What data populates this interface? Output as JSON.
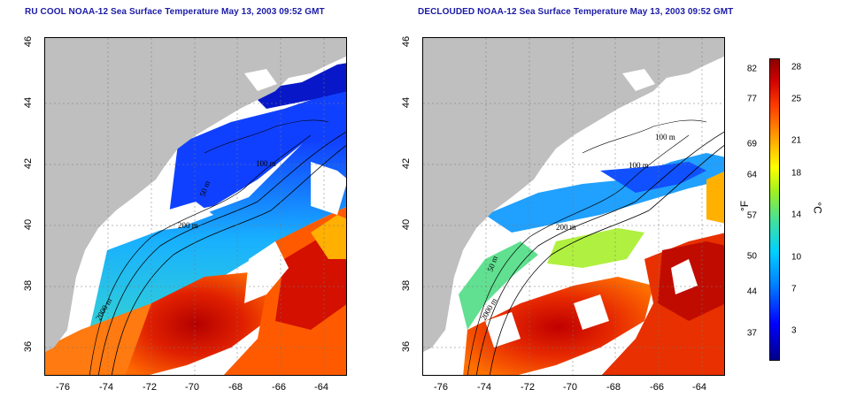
{
  "titles": {
    "left": "RU COOL NOAA-12 Sea Surface Temperature May 13, 2003 09:52 GMT",
    "right": "DECLOUDED NOAA-12 Sea Surface Temperature May 13, 2003 09:52 GMT"
  },
  "axes": {
    "x_ticks": [
      "-76",
      "-74",
      "-72",
      "-70",
      "-68",
      "-66",
      "-64"
    ],
    "y_ticks": [
      "36",
      "38",
      "40",
      "42",
      "44",
      "46"
    ]
  },
  "contour_labels": {
    "left": [
      "100 m",
      "200 m",
      "2000 m",
      "50 m"
    ],
    "right": [
      "100 m",
      "100 m",
      "200 m",
      "2000 m",
      "50 m"
    ]
  },
  "colorbar": {
    "fahrenheit_ticks": [
      "82",
      "77",
      "69",
      "64",
      "57",
      "50",
      "44",
      "37"
    ],
    "celsius_ticks": [
      "28",
      "25",
      "21",
      "18",
      "14",
      "10",
      "7",
      "3"
    ],
    "unit_f": "°F",
    "unit_c": "°C"
  }
}
